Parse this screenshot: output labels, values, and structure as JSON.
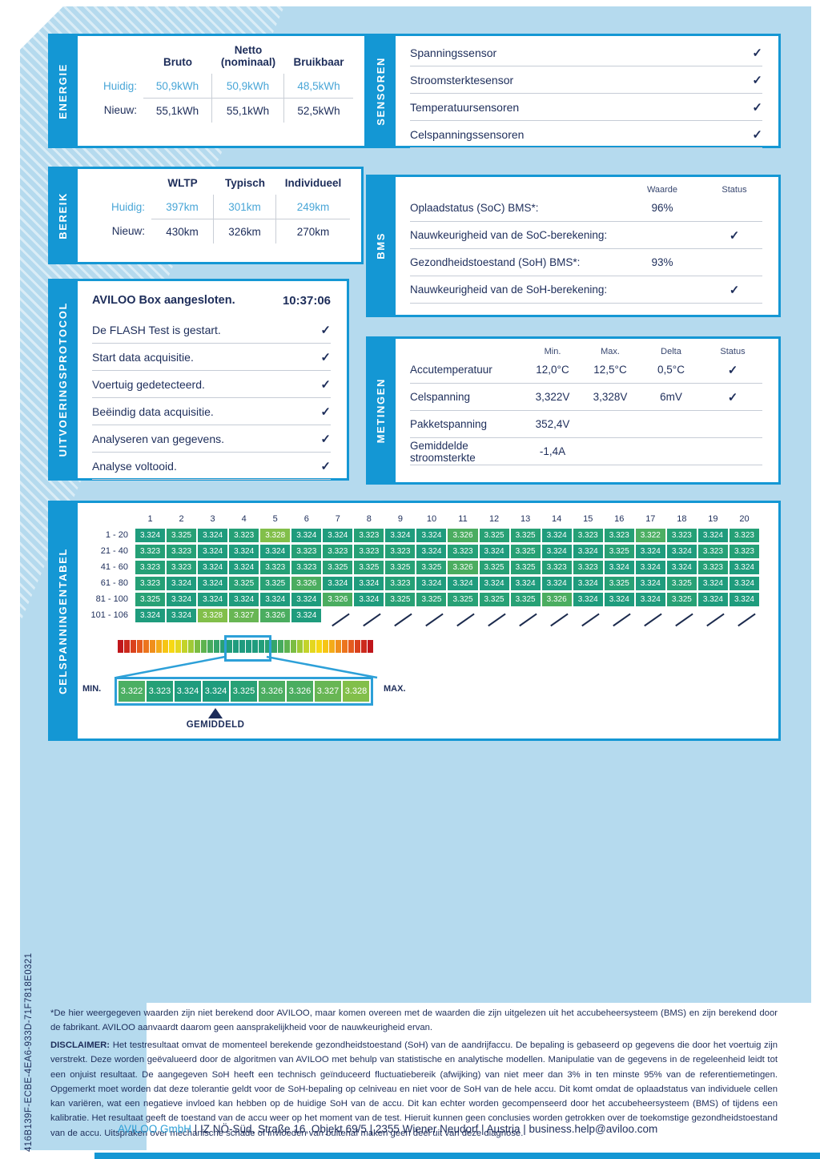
{
  "page": {
    "uuid": "416B139F-ECBE-4EA6-933D-71F7818E0321",
    "note": "*De hier weergegeven waarden zijn niet berekend door AVILOO, maar komen overeen met de waarden die zijn uitgelezen uit het accubeheersysteem (BMS) en zijn berekend door de fabrikant. AVILOO aanvaardt daarom geen aansprakelijkheid voor de nauwkeurigheid ervan.",
    "disclaimer_label": "DISCLAIMER:",
    "disclaimer": "Het testresultaat omvat de momenteel berekende gezondheidstoestand (SoH) van de aandrijfaccu. De bepaling is gebaseerd op gegevens die door het voertuig zijn verstrekt. Deze worden geëvalueerd door de algoritmen van AVILOO met behulp van statistische en analytische modellen. Manipulatie van de gegevens in de regeleenheid leidt tot een onjuist resultaat. De aangegeven SoH heeft een technisch geïnduceerd fluctuatiebereik (afwijking) van niet meer dan 3% in ten minste 95% van de referentiemetingen. Opgemerkt moet worden dat deze tolerantie geldt voor de SoH-bepaling op celniveau en niet voor de SoH van de hele accu. Dit komt omdat de oplaadstatus van individuele cellen kan variëren, wat een negatieve invloed kan hebben op de huidige SoH van de accu. Dit kan echter worden gecompenseerd door het accubeheersysteem (BMS) of tijdens een kalibratie. Het resultaat geeft de toestand van de accu weer op het moment van de test. Hieruit kunnen geen conclusies worden getrokken over de toekomstige gezondheidstoestand van de accu. Uitspraken over mechanische schade of invloeden van buitenaf maken geen deel uit van deze diagnose.",
    "footer": {
      "company": "AVILOO GmbH",
      "rest": " | IZ NÖ-Süd, Straße 16, Objekt 69/5 | 2355 Wiener Neudorf | Austria | ",
      "email": "business.help@aviloo.com"
    }
  },
  "energie": {
    "title": "ENERGIE",
    "headers": [
      "Bruto",
      "Netto\n(nominaal)",
      "Bruikbaar"
    ],
    "rows": [
      {
        "label": "Huidig:",
        "values": [
          "50,9kWh",
          "50,9kWh",
          "48,5kWh"
        ],
        "blue": true
      },
      {
        "label": "Nieuw:",
        "values": [
          "55,1kWh",
          "55,1kWh",
          "52,5kWh"
        ],
        "blue": false
      }
    ]
  },
  "bereik": {
    "title": "BEREIK",
    "headers": [
      "WLTP",
      "Typisch",
      "Individueel"
    ],
    "rows": [
      {
        "label": "Huidig:",
        "values": [
          "397km",
          "301km",
          "249km"
        ],
        "blue": true
      },
      {
        "label": "Nieuw:",
        "values": [
          "430km",
          "326km",
          "270km"
        ],
        "blue": false
      }
    ]
  },
  "sensoren": {
    "title": "SENSOREN",
    "items": [
      "Spanningssensor",
      "Stroomsterktesensor",
      "Temperatuursensoren",
      "Celspanningssensoren"
    ]
  },
  "bms": {
    "title": "BMS",
    "headers": {
      "value": "Waarde",
      "status": "Status"
    },
    "rows": [
      {
        "label": "Oplaadstatus (SoC) BMS*:",
        "value": "96%",
        "check": false
      },
      {
        "label": "Nauwkeurigheid van de SoC-berekening:",
        "value": "",
        "check": true
      },
      {
        "label": "Gezondheidstoestand (SoH) BMS*:",
        "value": "93%",
        "check": false
      },
      {
        "label": "Nauwkeurigheid van de SoH-berekening:",
        "value": "",
        "check": true
      }
    ]
  },
  "protocol": {
    "title": "UITVOERINGSPROTOCOL",
    "header": {
      "label": "AVILOO Box aangesloten.",
      "time": "10:37:06"
    },
    "steps": [
      "De FLASH Test is gestart.",
      "Start data acquisitie.",
      "Voertuig gedetecteerd.",
      "Beëindig data acquisitie.",
      "Analyseren van gegevens.",
      "Analyse voltooid."
    ]
  },
  "metingen": {
    "title": "METINGEN",
    "headers": [
      "Min.",
      "Max.",
      "Delta",
      "Status"
    ],
    "rows": [
      {
        "label": "Accutemperatuur",
        "min": "12,0°C",
        "max": "12,5°C",
        "delta": "0,5°C",
        "check": true
      },
      {
        "label": "Celspanning",
        "min": "3,322V",
        "max": "3,328V",
        "delta": "6mV",
        "check": true
      },
      {
        "label": "Pakketspanning",
        "min": "352,4V",
        "max": "",
        "delta": "",
        "check": false
      },
      {
        "label": "Gemiddelde stroomsterkte",
        "min": "-1,4A",
        "max": "",
        "delta": "",
        "check": false
      }
    ]
  },
  "celltable": {
    "title": "CELSPANNINGENTABEL",
    "col_headers": [
      "1",
      "2",
      "3",
      "4",
      "5",
      "6",
      "7",
      "8",
      "9",
      "10",
      "11",
      "12",
      "13",
      "14",
      "15",
      "16",
      "17",
      "18",
      "19",
      "20"
    ],
    "rows": [
      {
        "label": "1 - 20",
        "values": [
          "3.324",
          "3.325",
          "3.324",
          "3.323",
          "3.328",
          "3.324",
          "3.324",
          "3.323",
          "3.324",
          "3.324",
          "3.326",
          "3.325",
          "3.325",
          "3.324",
          "3.323",
          "3.323",
          "3.322",
          "3.323",
          "3.324",
          "3.323"
        ]
      },
      {
        "label": "21 - 40",
        "values": [
          "3.323",
          "3.323",
          "3.324",
          "3.324",
          "3.324",
          "3.323",
          "3.323",
          "3.323",
          "3.323",
          "3.324",
          "3.323",
          "3.324",
          "3.325",
          "3.324",
          "3.324",
          "3.325",
          "3.324",
          "3.324",
          "3.323",
          "3.323"
        ]
      },
      {
        "label": "41 - 60",
        "values": [
          "3.323",
          "3.323",
          "3.324",
          "3.324",
          "3.323",
          "3.323",
          "3.325",
          "3.325",
          "3.325",
          "3.325",
          "3.326",
          "3.325",
          "3.325",
          "3.323",
          "3.323",
          "3.324",
          "3.324",
          "3.324",
          "3.323",
          "3.324"
        ]
      },
      {
        "label": "61 - 80",
        "values": [
          "3.323",
          "3.324",
          "3.324",
          "3.325",
          "3.325",
          "3.326",
          "3.324",
          "3.324",
          "3.323",
          "3.324",
          "3.324",
          "3.324",
          "3.324",
          "3.324",
          "3.324",
          "3.325",
          "3.324",
          "3.325",
          "3.324",
          "3.324"
        ]
      },
      {
        "label": "81 - 100",
        "values": [
          "3.325",
          "3.324",
          "3.324",
          "3.324",
          "3.324",
          "3.324",
          "3.326",
          "3.324",
          "3.325",
          "3.325",
          "3.325",
          "3.325",
          "3.325",
          "3.326",
          "3.324",
          "3.324",
          "3.324",
          "3.325",
          "3.324",
          "3.324"
        ]
      },
      {
        "label": "101 - 106",
        "values": [
          "3.324",
          "3.324",
          "3.328",
          "3.327",
          "3.326",
          "3.324",
          null,
          null,
          null,
          null,
          null,
          null,
          null,
          null,
          null,
          null,
          null,
          null,
          null,
          null
        ]
      }
    ],
    "value_colors": {
      "3.322": "#4caf63",
      "3.323": "#25a076",
      "3.324": "#1f9c7d",
      "3.325": "#28a175",
      "3.326": "#4bad60",
      "3.327": "#68b654",
      "3.328": "#82bf4a"
    },
    "gradient_half": [
      "#c0161b",
      "#cc2a1c",
      "#da421d",
      "#e55b1e",
      "#ec741d",
      "#f08f1c",
      "#f4ab19",
      "#f6c514",
      "#f7d813",
      "#e4d71f",
      "#c3d32a",
      "#a0ca36",
      "#7cbd43",
      "#5eb350",
      "#47ab5e",
      "#35a56b",
      "#2aa175",
      "#239e7b",
      "#1f9c7e",
      "#1e9b7f"
    ],
    "legend": {
      "min_label": "MIN.",
      "max_label": "MAX.",
      "avg_label": "GEMIDDELD",
      "strip": [
        "3.322",
        "3.323",
        "3.324",
        "3.324",
        "3.325",
        "3.326",
        "3.326",
        "3.327",
        "3.328"
      ],
      "avg_index": 3
    }
  },
  "colors": {
    "accent_blue": "#1497d4",
    "light_blue_text": "#49a6d7",
    "navy": "#1d2d5a",
    "panel": "#b5daee"
  }
}
